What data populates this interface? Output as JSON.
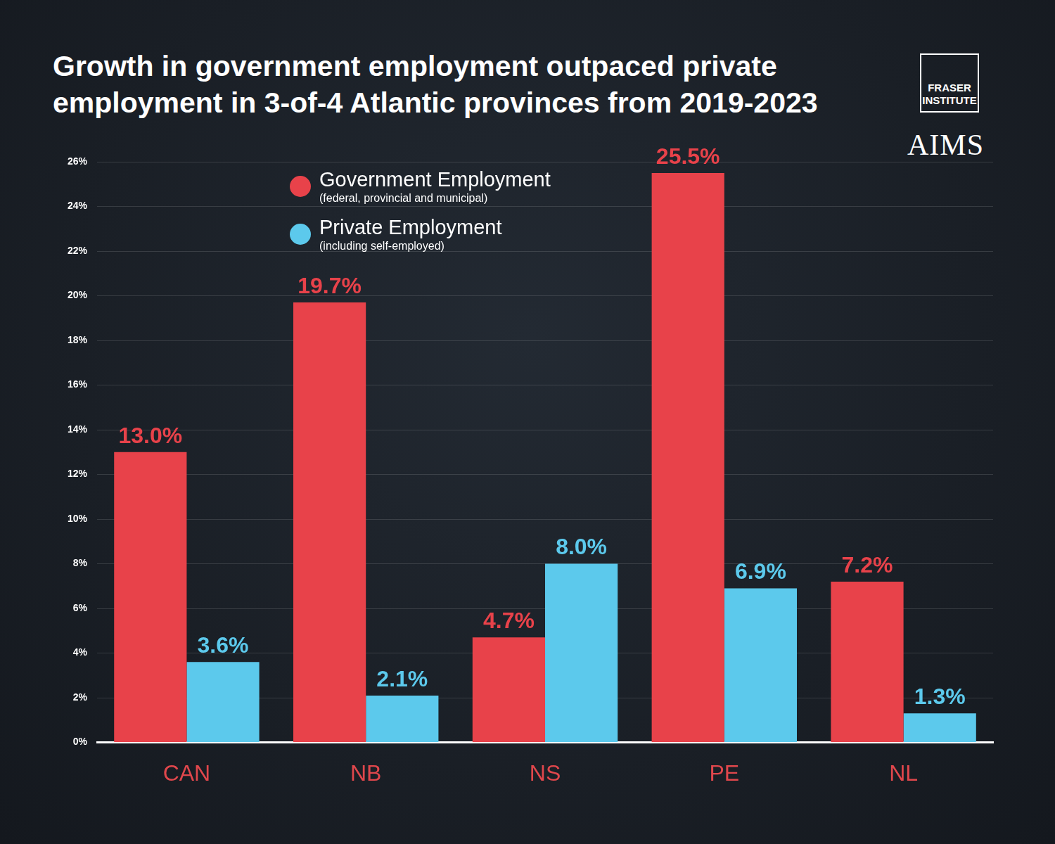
{
  "chart_data": {
    "type": "bar",
    "title": "Growth in government employment outpaced private employment in 3-of-4 Atlantic provinces from 2019-2023",
    "categories": [
      "CAN",
      "NB",
      "NS",
      "PE",
      "NL"
    ],
    "series": [
      {
        "name": "Government Employment",
        "legend_note": "(federal, provincial and municipal)",
        "color": "#e8424a",
        "values": [
          13.0,
          19.7,
          4.7,
          25.5,
          7.2
        ],
        "value_labels": [
          "13.0%",
          "19.7%",
          "4.7%",
          "25.5%",
          "7.2%"
        ]
      },
      {
        "name": "Private Employment",
        "legend_note": "(including self-employed)",
        "color": "#5cc9ec",
        "values": [
          3.6,
          2.1,
          8.0,
          6.9,
          1.3
        ],
        "value_labels": [
          "3.6%",
          "2.1%",
          "8.0%",
          "6.9%",
          "1.3%"
        ]
      }
    ],
    "ylim": [
      0,
      26
    ],
    "yticks": [
      {
        "value": 0,
        "label": "0%"
      },
      {
        "value": 2,
        "label": "2%"
      },
      {
        "value": 4,
        "label": "4%"
      },
      {
        "value": 6,
        "label": "6%"
      },
      {
        "value": 8,
        "label": "8%"
      },
      {
        "value": 10,
        "label": "10%"
      },
      {
        "value": 12,
        "label": "12%"
      },
      {
        "value": 14,
        "label": "14%"
      },
      {
        "value": 16,
        "label": "16%"
      },
      {
        "value": 18,
        "label": "18%"
      },
      {
        "value": 20,
        "label": "20%"
      },
      {
        "value": 22,
        "label": "22%"
      },
      {
        "value": 24,
        "label": "24%"
      },
      {
        "value": 26,
        "label": "26%"
      }
    ],
    "grid": true,
    "legend": "top",
    "data_labels": true,
    "annotations": [
      "FRASER INSTITUTE",
      "AIMS"
    ]
  }
}
